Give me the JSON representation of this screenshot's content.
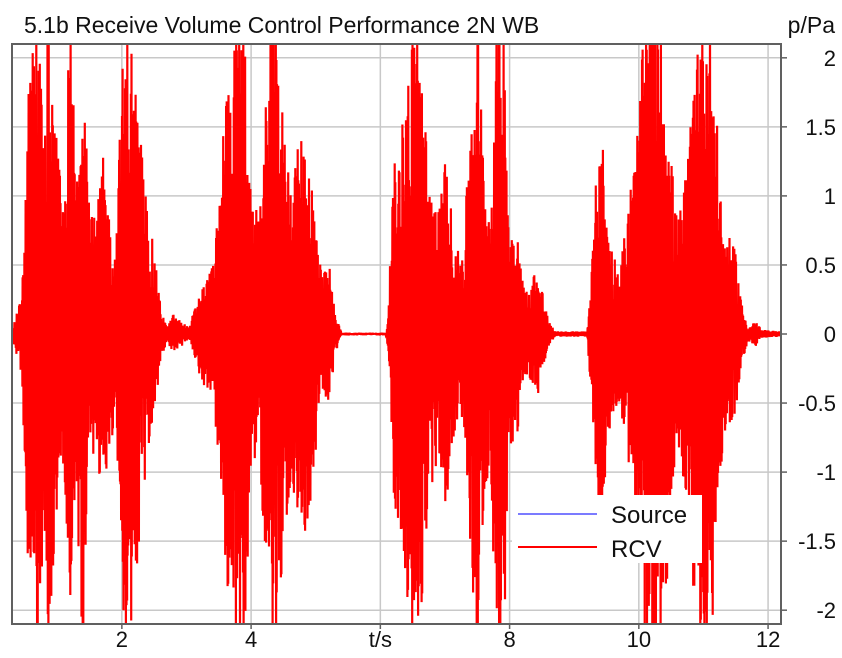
{
  "chart_data": {
    "type": "line",
    "title": "5.1b Receive Volume Control Performance 2N WB",
    "xlabel": "t/s",
    "ylabel": "p/Pa",
    "xlim": [
      0.3,
      12.2
    ],
    "ylim": [
      -2.1,
      2.1
    ],
    "x_ticks": [
      {
        "value": 2,
        "label": "2"
      },
      {
        "value": 4,
        "label": "4"
      },
      {
        "value": 6,
        "label": "t/s"
      },
      {
        "value": 8,
        "label": "8"
      },
      {
        "value": 10,
        "label": "10"
      },
      {
        "value": 12,
        "label": "12"
      }
    ],
    "y_ticks": [
      {
        "value": 2,
        "label": "2"
      },
      {
        "value": 1.5,
        "label": "1.5"
      },
      {
        "value": 1,
        "label": "1"
      },
      {
        "value": 0.5,
        "label": "0.5"
      },
      {
        "value": 0,
        "label": "0"
      },
      {
        "value": -0.5,
        "label": "-0.5"
      },
      {
        "value": -1,
        "label": "-1"
      },
      {
        "value": -1.5,
        "label": "-1.5"
      },
      {
        "value": -2,
        "label": "-2"
      }
    ],
    "grid": true,
    "legend_position": "bottom-right",
    "series": [
      {
        "name": "Source",
        "color": "#7b7bff",
        "envelope": {
          "t": [
            0.3,
            12.2
          ],
          "amp": [
            0,
            0
          ]
        }
      },
      {
        "name": "RCV",
        "color": "#ff0000",
        "envelope": {
          "t": [
            0.3,
            0.45,
            0.5,
            0.6,
            0.7,
            0.8,
            0.85,
            0.95,
            1.1,
            1.2,
            1.3,
            1.4,
            1.5,
            1.6,
            1.7,
            1.75,
            1.8,
            1.9,
            2.0,
            2.1,
            2.2,
            2.3,
            2.4,
            2.5,
            2.6,
            2.7,
            2.8,
            2.85,
            2.95,
            3.05,
            3.1,
            3.2,
            3.4,
            3.5,
            3.6,
            3.7,
            3.8,
            3.9,
            4.0,
            4.1,
            4.2,
            4.3,
            4.4,
            4.5,
            4.6,
            4.7,
            4.8,
            4.9,
            5.0,
            5.1,
            5.2,
            5.3,
            5.4,
            5.45,
            5.5,
            5.6,
            5.7,
            6.1,
            6.15,
            6.2,
            6.3,
            6.4,
            6.5,
            6.6,
            6.7,
            6.8,
            6.9,
            7.0,
            7.1,
            7.2,
            7.3,
            7.4,
            7.5,
            7.6,
            7.7,
            7.8,
            7.9,
            8.0,
            8.1,
            8.2,
            8.3,
            8.4,
            8.5,
            8.6,
            8.7,
            9.2,
            9.3,
            9.4,
            9.5,
            9.6,
            9.7,
            9.8,
            9.9,
            10.0,
            10.1,
            10.2,
            10.3,
            10.4,
            10.5,
            10.6,
            10.7,
            10.8,
            10.9,
            11.0,
            11.1,
            11.2,
            11.3,
            11.4,
            11.5,
            11.6,
            11.7,
            11.8,
            11.9,
            12.2
          ],
          "amp": [
            0.02,
            0.3,
            1.0,
            2.4,
            2.4,
            1.3,
            2.4,
            1.6,
            0.9,
            2.4,
            1.2,
            2.4,
            1.0,
            0.8,
            1.3,
            1.2,
            0.9,
            0.6,
            1.9,
            2.4,
            1.9,
            1.4,
            0.9,
            0.6,
            0.2,
            0.05,
            0.15,
            0.12,
            0.08,
            0.05,
            0.15,
            0.3,
            0.5,
            0.9,
            1.8,
            2.0,
            2.4,
            2.4,
            0.9,
            0.9,
            1.4,
            2.4,
            2.4,
            1.5,
            1.2,
            1.3,
            1.5,
            1.3,
            0.9,
            0.4,
            0.55,
            0.15,
            0.01,
            0.01,
            0.01,
            0.01,
            0.01,
            0.01,
            0.5,
            1.2,
            1.4,
            1.8,
            2.4,
            2.4,
            1.5,
            1.1,
            0.9,
            1.3,
            0.9,
            0.6,
            0.7,
            1.7,
            2.4,
            1.3,
            0.9,
            2.4,
            2.4,
            0.8,
            0.9,
            0.4,
            0.3,
            0.5,
            0.35,
            0.1,
            0.02,
            0.02,
            0.7,
            1.8,
            0.9,
            0.6,
            0.5,
            0.8,
            1.2,
            1.6,
            2.4,
            2.4,
            2.4,
            2.1,
            1.3,
            0.8,
            1.1,
            1.5,
            2.4,
            2.4,
            2.4,
            1.6,
            0.8,
            0.7,
            0.6,
            0.2,
            0.05,
            0.1,
            0.03,
            0.02
          ]
        }
      }
    ]
  }
}
